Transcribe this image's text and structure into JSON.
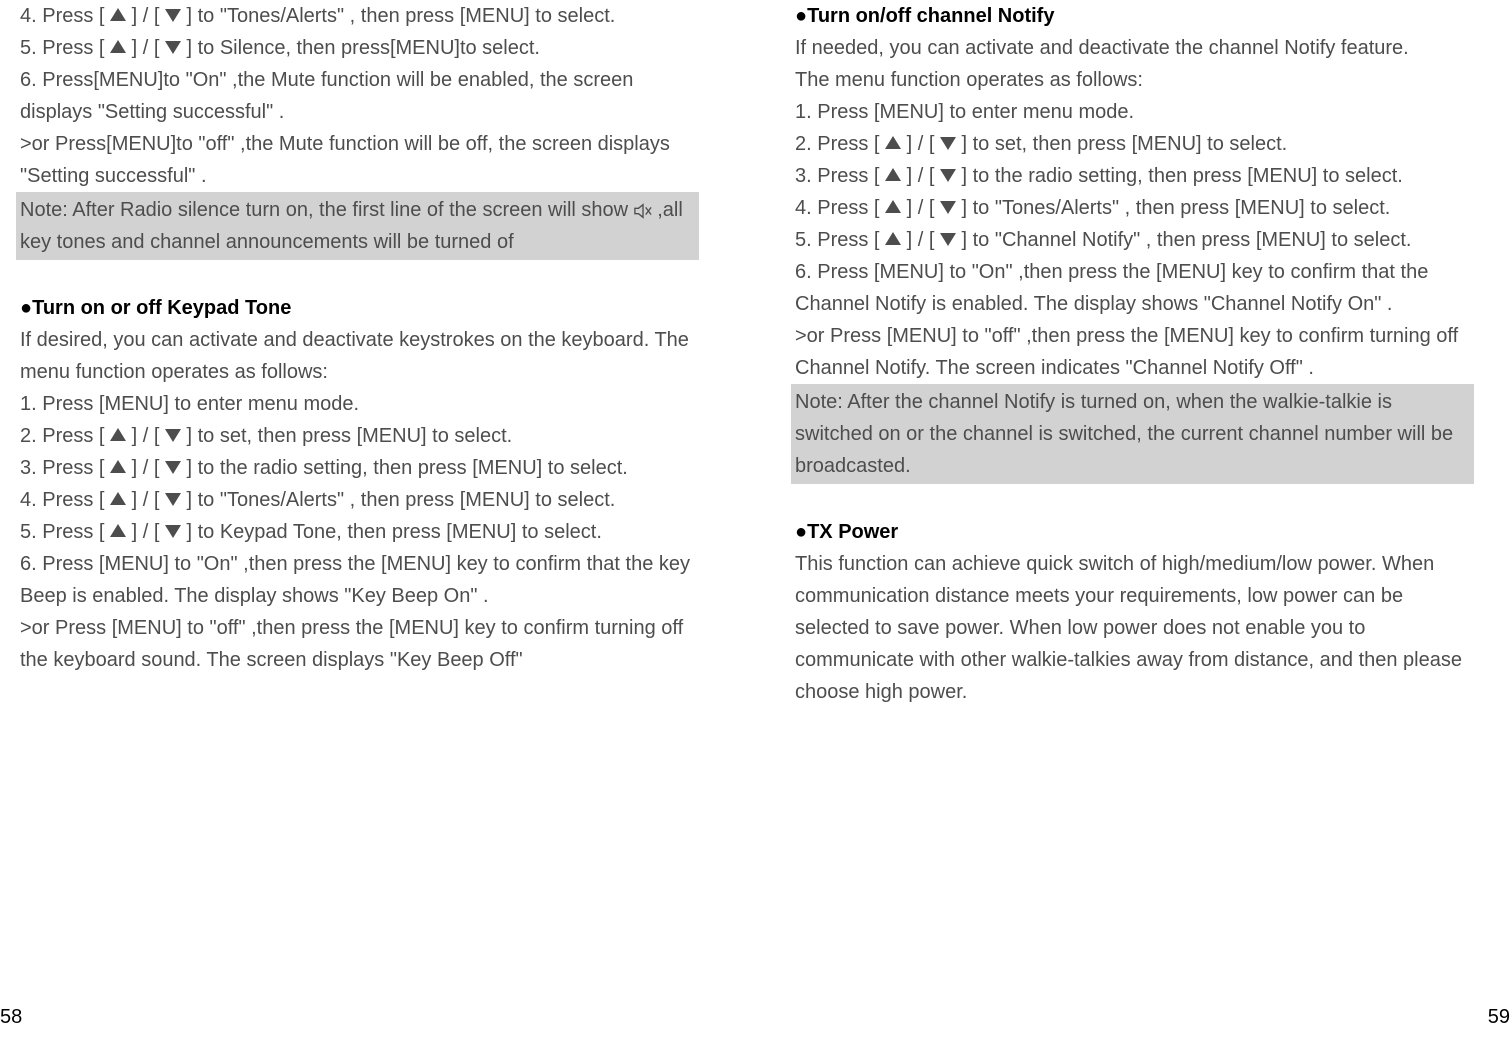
{
  "colors": {
    "text": "#4d4d4d",
    "heading": "#000000",
    "noteBg": "#d2d2d2",
    "pageBg": "#ffffff"
  },
  "left": {
    "lines": [
      {
        "type": "text",
        "val": "4. Press [ ▲ ] / [ ▼ ] to \"Tones/Alerts\" , then press [MENU] to select."
      },
      {
        "type": "text",
        "val": "5. Press [ ▲ ] / [ ▼ ] to Silence, then press[MENU]to select."
      },
      {
        "type": "text",
        "val": "6. Press[MENU]to \"On\" ,the Mute function will be enabled, the screen displays \"Setting successful\" ."
      },
      {
        "type": "text",
        "val": ">or Press[MENU]to \"off\" ,the Mute function will be off, the screen displays \"Setting successful\" ."
      },
      {
        "type": "note",
        "val": "Note: After Radio silence turn on, the first line of the screen will show [mute] ,all key tones and channel announcements will be turned of"
      },
      {
        "type": "spacer"
      },
      {
        "type": "heading",
        "val": "●Turn on or off Keypad Tone"
      },
      {
        "type": "text",
        "val": "If desired, you can activate and deactivate keystrokes on the keyboard. The menu function operates as follows:"
      },
      {
        "type": "text",
        "val": "1. Press [MENU] to enter menu mode."
      },
      {
        "type": "text",
        "val": "2. Press [ ▲ ] / [ ▼ ] to set, then press [MENU] to select."
      },
      {
        "type": "text",
        "val": "3. Press [ ▲ ] / [ ▼ ] to the radio setting, then press [MENU] to select."
      },
      {
        "type": "text",
        "val": "4. Press [ ▲ ] / [ ▼ ] to \"Tones/Alerts\" , then press [MENU] to select."
      },
      {
        "type": "text",
        "val": "5. Press [ ▲ ] / [ ▼ ] to Keypad Tone, then press [MENU] to select."
      },
      {
        "type": "text",
        "val": "6. Press [MENU] to \"On\" ,then press the [MENU] key to confirm that the key Beep is enabled. The display shows \"Key Beep On\" ."
      },
      {
        "type": "text",
        "val": ">or Press [MENU] to \"off\" ,then press the [MENU] key to confirm turning off the keyboard sound. The screen displays \"Key Beep Off\""
      }
    ],
    "pageNum": "58"
  },
  "right": {
    "lines": [
      {
        "type": "heading",
        "val": "●Turn on/off channel Notify"
      },
      {
        "type": "text",
        "val": "If needed, you can activate and deactivate the channel Notify feature."
      },
      {
        "type": "text",
        "val": "The menu function operates as follows:"
      },
      {
        "type": "text",
        "val": "1. Press [MENU] to enter menu mode."
      },
      {
        "type": "text",
        "val": "2. Press [ ▲ ] / [ ▼ ] to set, then press [MENU] to select."
      },
      {
        "type": "text",
        "val": "3. Press [ ▲ ] / [ ▼ ] to the radio setting, then press [MENU] to select."
      },
      {
        "type": "text",
        "val": "4. Press [ ▲ ] / [ ▼ ] to \"Tones/Alerts\" , then press [MENU] to select."
      },
      {
        "type": "text",
        "val": "5. Press [ ▲ ] / [ ▼ ] to \"Channel Notify\" , then press [MENU] to select."
      },
      {
        "type": "text",
        "val": "6. Press [MENU] to \"On\" ,then press the [MENU] key to confirm that the Channel Notify is enabled. The display shows \"Channel Notify On\" ."
      },
      {
        "type": "text",
        "val": ">or Press [MENU] to \"off\" ,then press the [MENU] key to confirm turning off Channel Notify. The screen indicates \"Channel Notify  Off\" ."
      },
      {
        "type": "note",
        "val": "Note: After the channel Notify is turned on, when the walkie-talkie is switched on or the channel is switched, the current channel number will be broadcasted."
      },
      {
        "type": "spacer"
      },
      {
        "type": "heading",
        "val": "●TX Power"
      },
      {
        "type": "text",
        "val": "This function can achieve quick switch of high/medium/low power. When communication distance meets your requirements, low power can be selected to save power. When low power does not enable you to communicate with other walkie-talkies away from distance, and then please choose high power."
      }
    ],
    "pageNum": "59"
  }
}
